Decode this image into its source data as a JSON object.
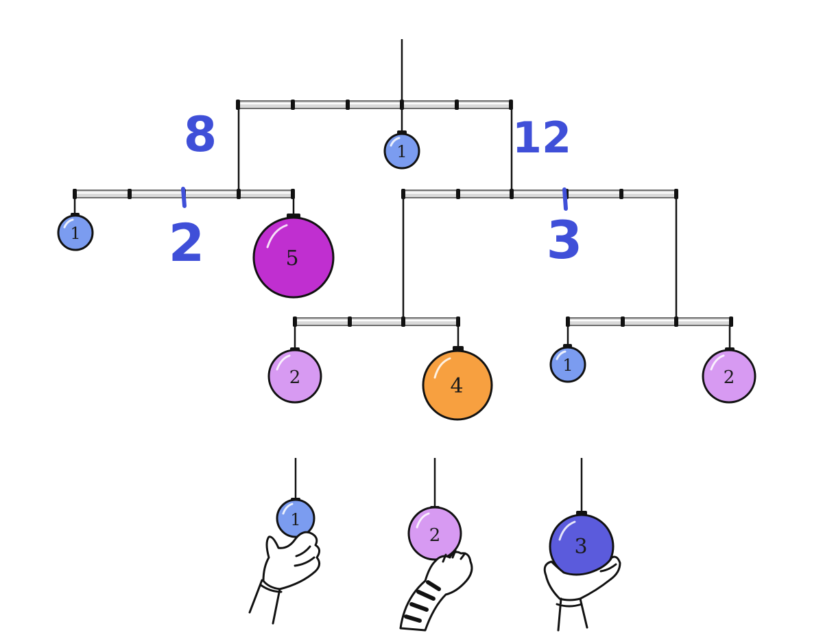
{
  "colors": {
    "blue": "#7b9cf0",
    "magenta": "#c02fd0",
    "lilac": "#d79af2",
    "orange": "#f7a040",
    "indigo": "#5b5bdc",
    "annotation": "#3f4fd8"
  },
  "annotations": {
    "left_total": "8",
    "right_total": "12",
    "left_ratio": "2",
    "right_ratio": "3"
  },
  "mobile_ornaments": {
    "top_center": "1",
    "left_small": "1",
    "left_big": "5",
    "mid_left": "2",
    "mid_right": "4",
    "far_left": "1",
    "far_right": "2"
  },
  "held_ornaments": {
    "first": "1",
    "second": "2",
    "third": "3"
  }
}
